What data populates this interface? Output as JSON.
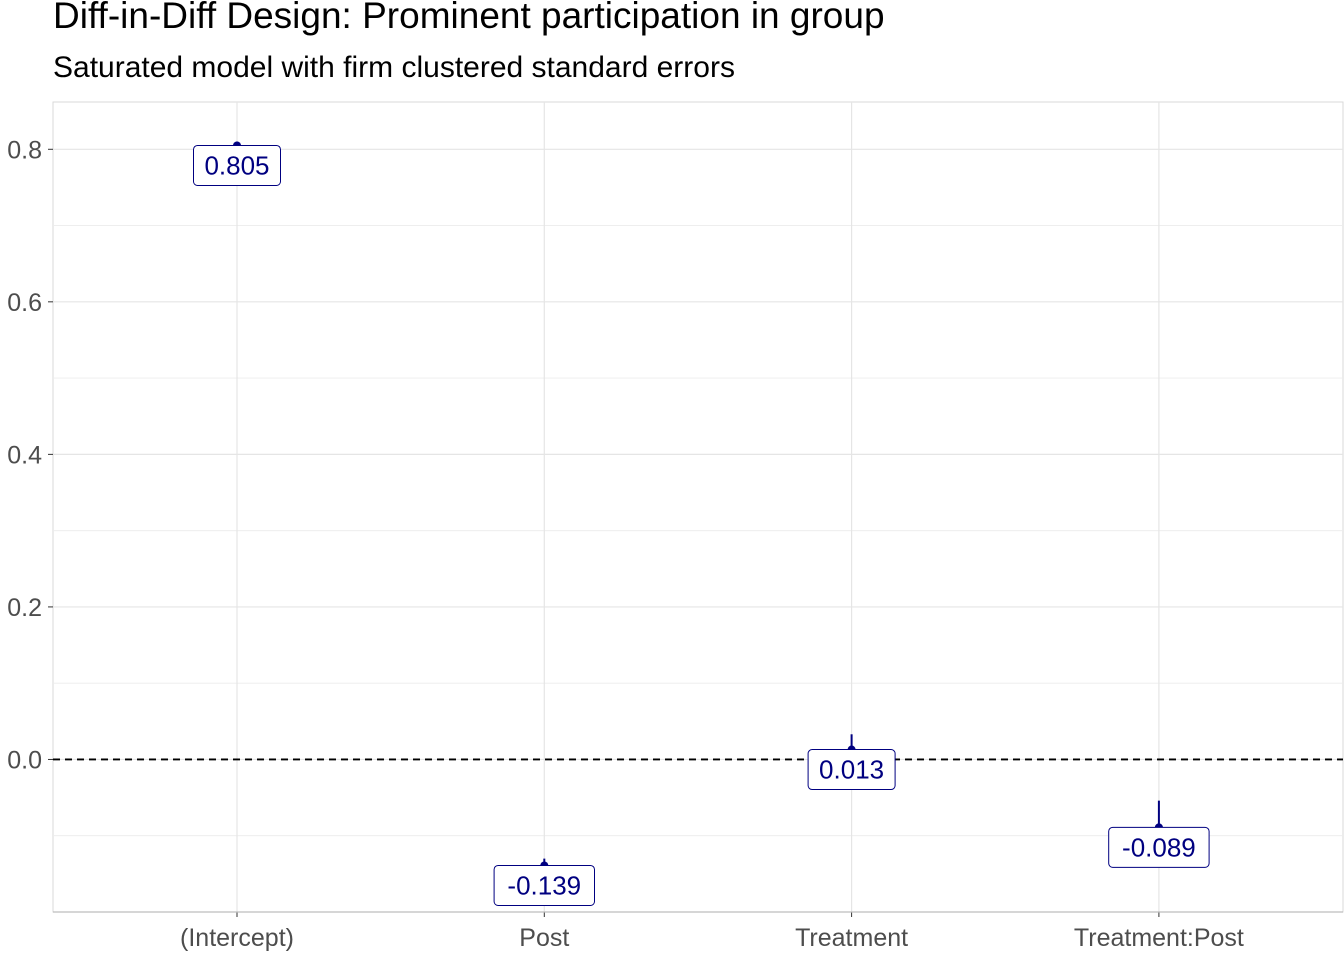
{
  "chart_data": {
    "type": "pointrange",
    "title": "Diff-in-Diff Design: Prominent participation in group",
    "subtitle": "Saturated model with firm clustered standard errors",
    "xlabel": "",
    "ylabel": "",
    "categories": [
      "(Intercept)",
      "Post",
      "Treatment",
      "Treatment:Post"
    ],
    "estimates": [
      0.805,
      -0.139,
      0.013,
      -0.089
    ],
    "ci_lower": [
      0.801,
      -0.147,
      0.0,
      -0.104
    ],
    "ci_upper": [
      0.81,
      -0.13,
      0.033,
      -0.054
    ],
    "labels": [
      "0.805",
      "-0.139",
      "0.013",
      "-0.089"
    ],
    "ylim": [
      -0.2,
      0.862
    ],
    "y_ticks": [
      0.0,
      0.2,
      0.4,
      0.6,
      0.8
    ],
    "y_tick_labels": [
      "0.0",
      "0.2",
      "0.4",
      "0.6",
      "0.8"
    ],
    "reference_line": 0,
    "grid": true,
    "colors": {
      "point": "#000080",
      "label_text": "#000080",
      "label_border": "#000080",
      "grid": "#e5e5e5",
      "axis_text": "#4d4d4d",
      "reference_line": "#000000"
    }
  }
}
